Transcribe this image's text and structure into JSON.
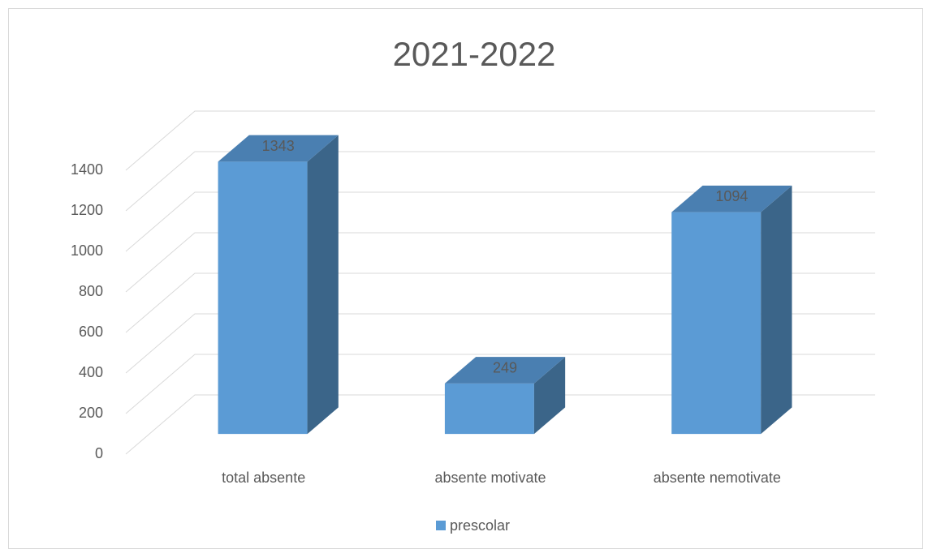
{
  "chart_data": {
    "type": "bar3d",
    "title": "2021-2022",
    "categories": [
      "total absente",
      "absente motivate",
      "absente nemotivate"
    ],
    "series": [
      {
        "name": "prescolar",
        "color": "#5b9bd5",
        "values": [
          1343,
          249,
          1094
        ]
      }
    ],
    "ylim": [
      0,
      1400
    ],
    "yticks": [
      0,
      200,
      400,
      600,
      800,
      1000,
      1200,
      1400
    ],
    "grid": true,
    "legend": "bottom"
  }
}
